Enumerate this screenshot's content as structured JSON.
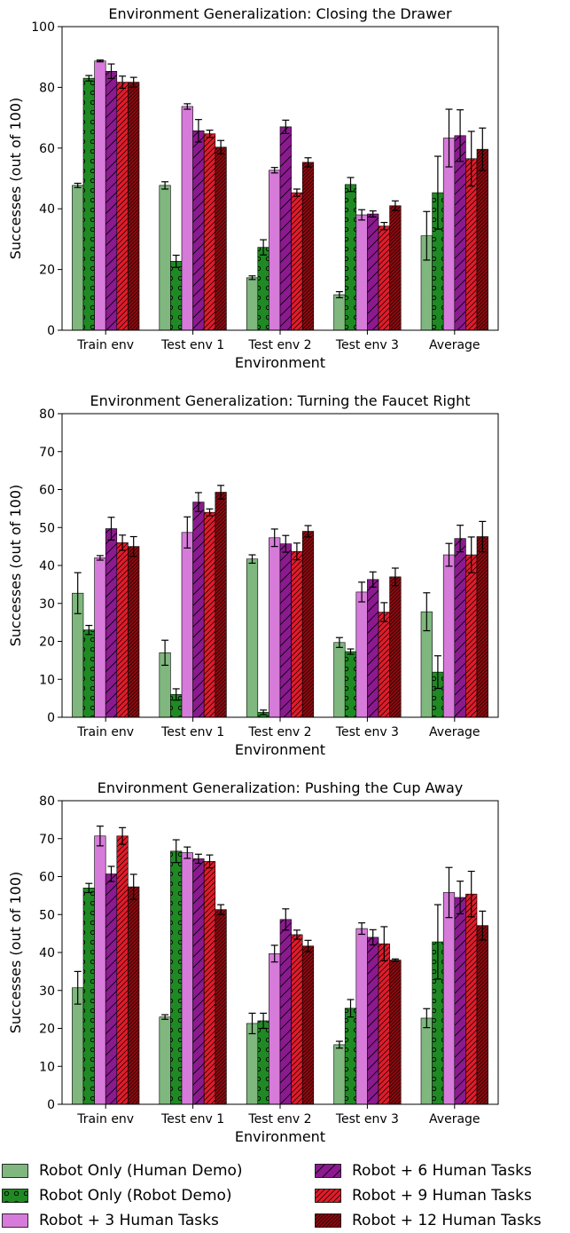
{
  "chart_data": [
    {
      "type": "bar",
      "title": "Environment Generalization: Closing the Drawer",
      "xlabel": "Environment",
      "ylabel": "Successes (out of 100)",
      "ylim": [
        0,
        100
      ],
      "yticks": [
        0,
        20,
        40,
        60,
        80,
        100
      ],
      "categories": [
        "Train env",
        "Test env 1",
        "Test env 2",
        "Test env 3",
        "Average"
      ],
      "series": [
        {
          "name": "Robot Only (Human Demo)",
          "values": [
            47.7,
            47.7,
            17.3,
            11.7,
            31.1
          ],
          "errors": [
            0.7,
            1.2,
            0.6,
            1.0,
            8.0
          ]
        },
        {
          "name": "Robot Only (Robot Demo)",
          "values": [
            83.0,
            22.7,
            27.3,
            48.0,
            45.3
          ],
          "errors": [
            0.9,
            2.0,
            2.5,
            2.3,
            12.0
          ]
        },
        {
          "name": "Robot + 3 Human Tasks",
          "values": [
            88.7,
            73.7,
            52.7,
            38.0,
            63.3
          ],
          "errors": [
            0.3,
            0.9,
            0.9,
            1.7,
            9.5
          ]
        },
        {
          "name": "Robot + 6 Human Tasks",
          "values": [
            85.3,
            65.7,
            67.0,
            38.3,
            64.1
          ],
          "errors": [
            2.4,
            3.7,
            2.2,
            1.0,
            8.5
          ]
        },
        {
          "name": "Robot + 9 Human Tasks",
          "values": [
            81.7,
            64.7,
            45.3,
            34.3,
            56.5
          ],
          "errors": [
            2.0,
            1.2,
            1.2,
            1.2,
            9.0
          ]
        },
        {
          "name": "Robot + 12 Human Tasks",
          "values": [
            81.7,
            60.3,
            55.3,
            41.0,
            59.6
          ],
          "errors": [
            1.6,
            2.2,
            1.5,
            1.6,
            7.0
          ]
        }
      ],
      "grid": false
    },
    {
      "type": "bar",
      "title": "Environment Generalization: Turning the Faucet Right",
      "xlabel": "Environment",
      "ylabel": "Successes (out of 100)",
      "ylim": [
        0,
        80
      ],
      "yticks": [
        0,
        10,
        20,
        30,
        40,
        50,
        60,
        70,
        80
      ],
      "categories": [
        "Train env",
        "Test env 1",
        "Test env 2",
        "Test env 3",
        "Average"
      ],
      "series": [
        {
          "name": "Robot Only (Human Demo)",
          "values": [
            32.7,
            17.0,
            41.7,
            19.7,
            27.8
          ],
          "errors": [
            5.4,
            3.3,
            1.1,
            1.3,
            5.0
          ]
        },
        {
          "name": "Robot Only (Robot Demo)",
          "values": [
            23.0,
            6.0,
            1.3,
            17.3,
            11.9
          ],
          "errors": [
            1.2,
            1.5,
            0.6,
            0.7,
            4.3
          ]
        },
        {
          "name": "Robot + 3 Human Tasks",
          "values": [
            42.0,
            48.7,
            47.3,
            33.0,
            42.8
          ],
          "errors": [
            0.6,
            4.1,
            2.3,
            2.6,
            3.0
          ]
        },
        {
          "name": "Robot + 6 Human Tasks",
          "values": [
            49.7,
            56.7,
            45.7,
            36.3,
            47.1
          ],
          "errors": [
            3.0,
            2.5,
            2.2,
            2.0,
            3.5
          ]
        },
        {
          "name": "Robot + 9 Human Tasks",
          "values": [
            46.0,
            54.0,
            43.7,
            27.7,
            42.8
          ],
          "errors": [
            2.0,
            0.9,
            2.2,
            2.5,
            4.7
          ]
        },
        {
          "name": "Robot + 12 Human Tasks",
          "values": [
            45.0,
            59.3,
            49.0,
            37.0,
            47.6
          ],
          "errors": [
            2.6,
            1.8,
            1.5,
            2.3,
            4.0
          ]
        }
      ],
      "grid": false
    },
    {
      "type": "bar",
      "title": "Environment Generalization: Pushing the Cup Away",
      "xlabel": "Environment",
      "ylabel": "Successes (out of 100)",
      "ylim": [
        0,
        80
      ],
      "yticks": [
        0,
        10,
        20,
        30,
        40,
        50,
        60,
        70,
        80
      ],
      "categories": [
        "Train env",
        "Test env 1",
        "Test env 2",
        "Test env 3",
        "Average"
      ],
      "series": [
        {
          "name": "Robot Only (Human Demo)",
          "values": [
            30.7,
            23.0,
            21.3,
            15.7,
            22.7
          ],
          "errors": [
            4.3,
            0.6,
            2.7,
            0.9,
            2.5
          ]
        },
        {
          "name": "Robot Only (Robot Demo)",
          "values": [
            57.0,
            66.7,
            22.0,
            25.3,
            42.8
          ],
          "errors": [
            1.2,
            3.0,
            2.0,
            2.3,
            9.8
          ]
        },
        {
          "name": "Robot + 3 Human Tasks",
          "values": [
            70.7,
            66.3,
            39.7,
            46.3,
            55.8
          ],
          "errors": [
            2.6,
            1.5,
            2.2,
            1.5,
            6.6
          ]
        },
        {
          "name": "Robot + 6 Human Tasks",
          "values": [
            60.7,
            64.7,
            48.7,
            44.0,
            54.5
          ],
          "errors": [
            2.0,
            1.2,
            2.8,
            2.0,
            4.3
          ]
        },
        {
          "name": "Robot + 9 Human Tasks",
          "values": [
            70.7,
            64.0,
            44.7,
            42.3,
            55.4
          ],
          "errors": [
            2.2,
            1.7,
            1.2,
            4.5,
            6.0
          ]
        },
        {
          "name": "Robot + 12 Human Tasks",
          "values": [
            57.3,
            51.3,
            41.7,
            38.0,
            47.1
          ],
          "errors": [
            3.3,
            1.3,
            1.5,
            0.3,
            3.8
          ]
        }
      ],
      "grid": false
    }
  ],
  "legend": {
    "placement": "bottom",
    "items": [
      {
        "label": "Robot Only (Human Demo)",
        "color": "#7fb77e",
        "hatch": "none"
      },
      {
        "label": "Robot Only (Robot Demo)",
        "color": "#1f8a23",
        "hatch": "circles"
      },
      {
        "label": "Robot + 3 Human Tasks",
        "color": "#d67bd9",
        "hatch": "none"
      },
      {
        "label": "Robot + 6 Human Tasks",
        "color": "#8b1a8f",
        "hatch": "slash"
      },
      {
        "label": "Robot + 9 Human Tasks",
        "color": "#e01c2a",
        "hatch": "double-slash"
      },
      {
        "label": "Robot + 12 Human Tasks",
        "color": "#8b0a0f",
        "hatch": "triple-slash"
      }
    ]
  }
}
